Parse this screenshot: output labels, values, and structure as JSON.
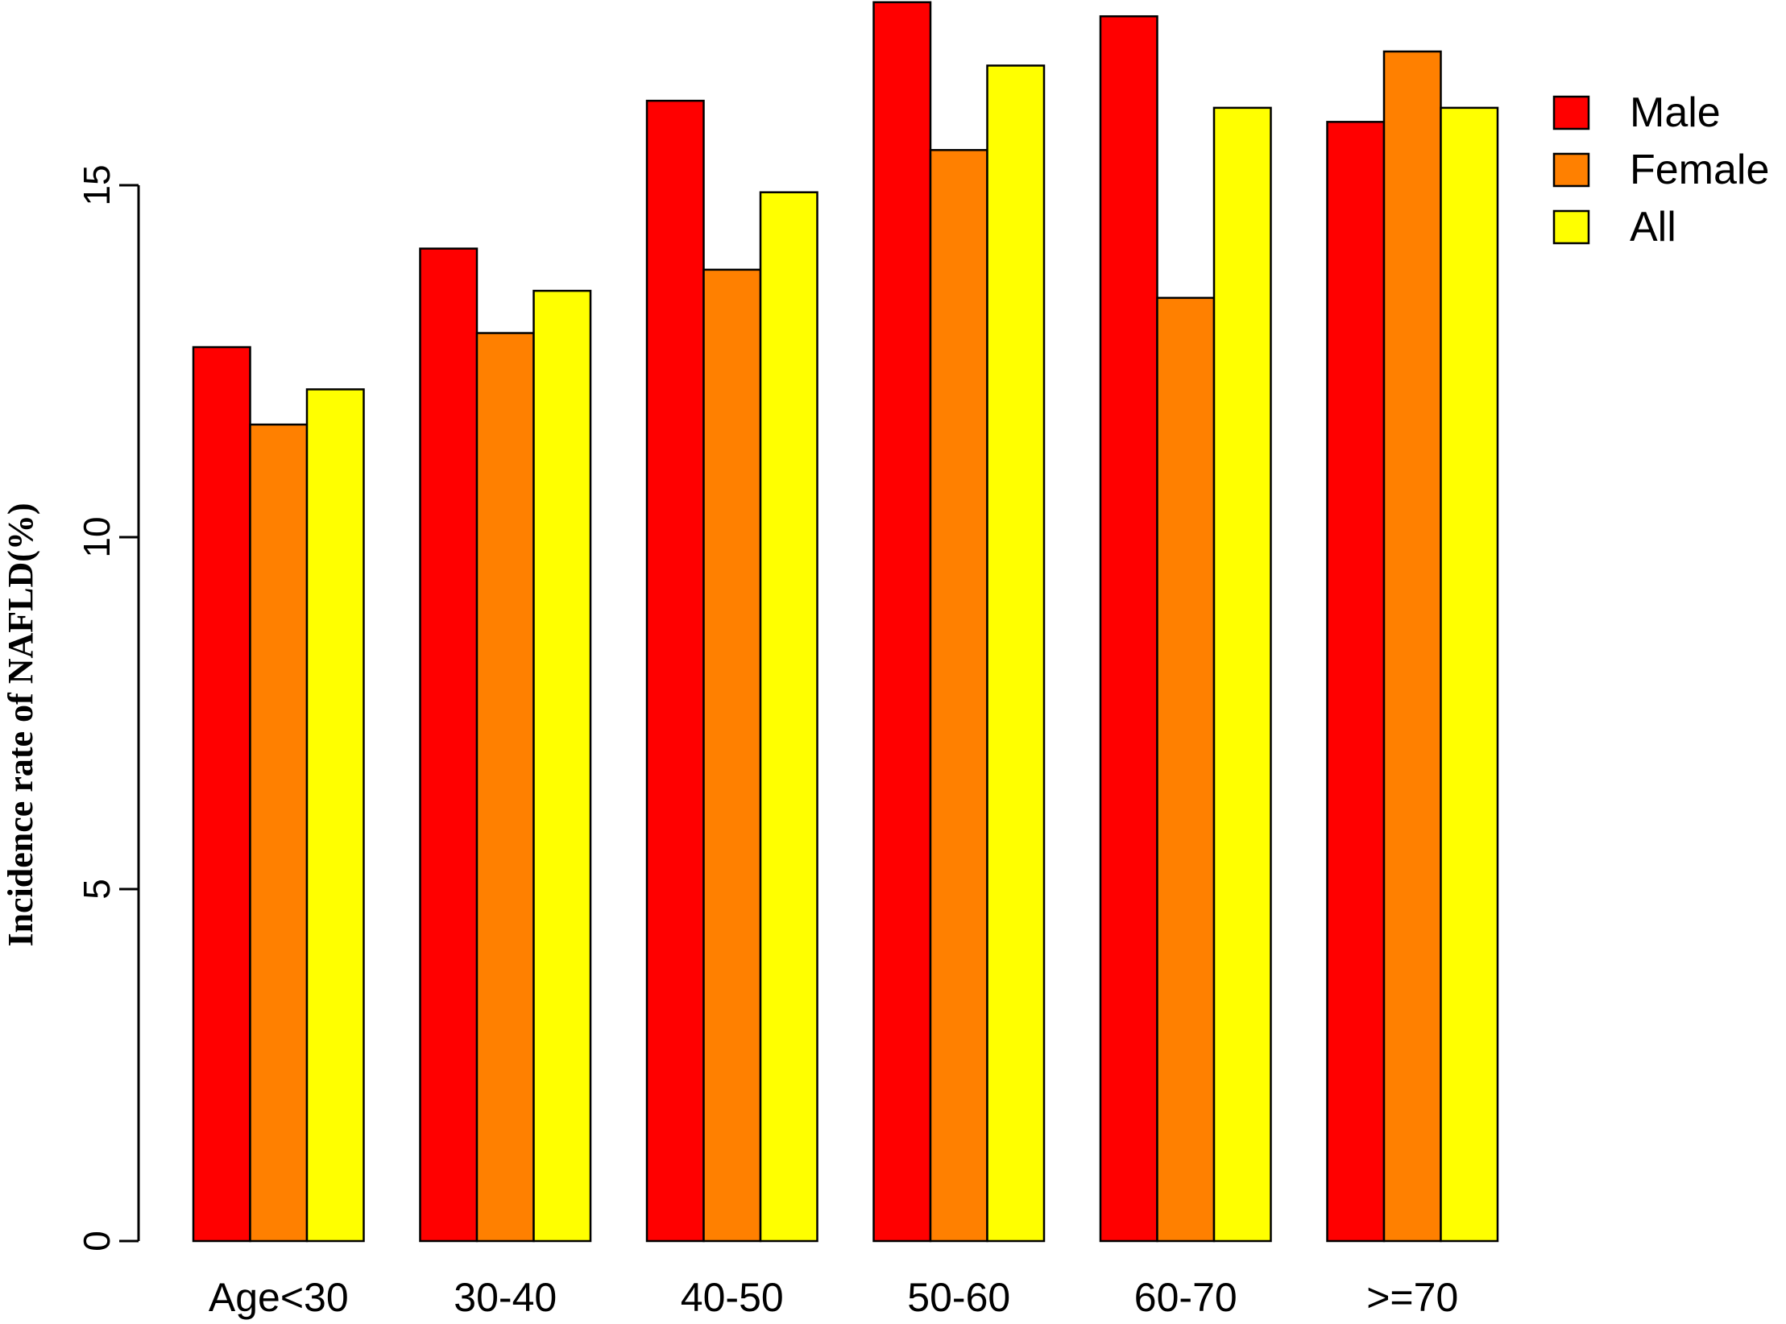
{
  "chart_data": {
    "type": "bar",
    "categories": [
      "Age<30",
      "30-40",
      "40-50",
      "50-60",
      "60-70",
      ">=70"
    ],
    "series": [
      {
        "name": "Male",
        "color": "#FF0000",
        "values": [
          12.7,
          14.1,
          16.2,
          17.6,
          17.4,
          15.9
        ]
      },
      {
        "name": "Female",
        "color": "#FF8000",
        "values": [
          11.6,
          12.9,
          13.8,
          15.5,
          13.4,
          16.9
        ]
      },
      {
        "name": "All",
        "color": "#FFFF00",
        "values": [
          12.1,
          13.5,
          14.9,
          16.7,
          16.1,
          16.1
        ]
      }
    ],
    "title": "",
    "xlabel": "",
    "ylabel": "Incidence rate of NAFLD(%)",
    "ylim": [
      0,
      17.6
    ],
    "yticks": [
      0,
      5,
      10,
      15
    ],
    "grid": false,
    "legend_position": "top-right"
  }
}
